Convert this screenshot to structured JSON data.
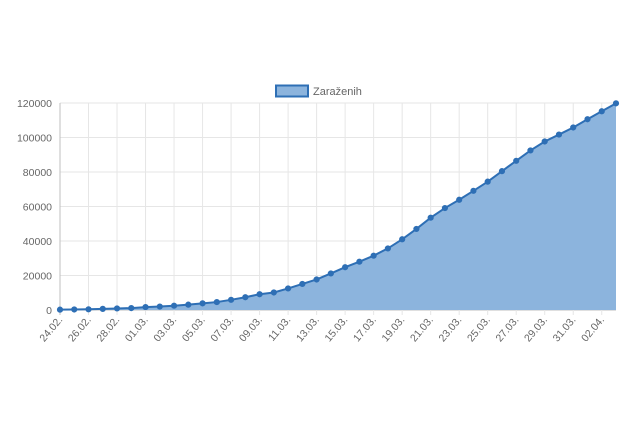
{
  "chart_data": {
    "type": "area",
    "legend": {
      "position": "top"
    },
    "grid": true,
    "ylim": [
      0,
      120000
    ],
    "yticks": [
      0,
      20000,
      40000,
      60000,
      80000,
      100000,
      120000
    ],
    "x": [
      "24.02.",
      "25.02.",
      "26.02.",
      "27.02.",
      "28.02.",
      "29.02.",
      "01.03.",
      "02.03.",
      "03.03.",
      "04.03.",
      "05.03.",
      "06.03.",
      "07.03.",
      "08.03.",
      "09.03.",
      "10.03.",
      "11.03.",
      "12.03.",
      "13.03.",
      "14.03.",
      "15.03.",
      "16.03.",
      "17.03.",
      "18.03.",
      "19.03.",
      "20.03.",
      "21.03.",
      "22.03.",
      "23.03.",
      "24.03.",
      "25.03.",
      "26.03.",
      "27.03.",
      "28.03.",
      "29.03.",
      "30.03.",
      "31.03.",
      "01.04.",
      "02.04.",
      "03.04."
    ],
    "x_tick_labels": [
      "24.02.",
      "26.02.",
      "28.02.",
      "01.03.",
      "03.03.",
      "05.03.",
      "07.03.",
      "09.03.",
      "11.03.",
      "13.03.",
      "15.03.",
      "17.03.",
      "19.03.",
      "21.03.",
      "23.03.",
      "25.03.",
      "27.03.",
      "29.03.",
      "31.03.",
      "02.04."
    ],
    "series": [
      {
        "name": "Zaraženih",
        "color": "#2e6fb5",
        "fill": "#8cb4dd",
        "values": [
          200,
          300,
          400,
          650,
          900,
          1100,
          1700,
          2000,
          2500,
          3100,
          3850,
          4600,
          5900,
          7400,
          9150,
          10150,
          12500,
          15100,
          17700,
          21200,
          24800,
          28000,
          31500,
          35700,
          41000,
          47000,
          53500,
          59100,
          63900,
          69100,
          74400,
          80500,
          86500,
          92500,
          97700,
          101700,
          105800,
          110600,
          115200,
          119800
        ]
      }
    ]
  }
}
